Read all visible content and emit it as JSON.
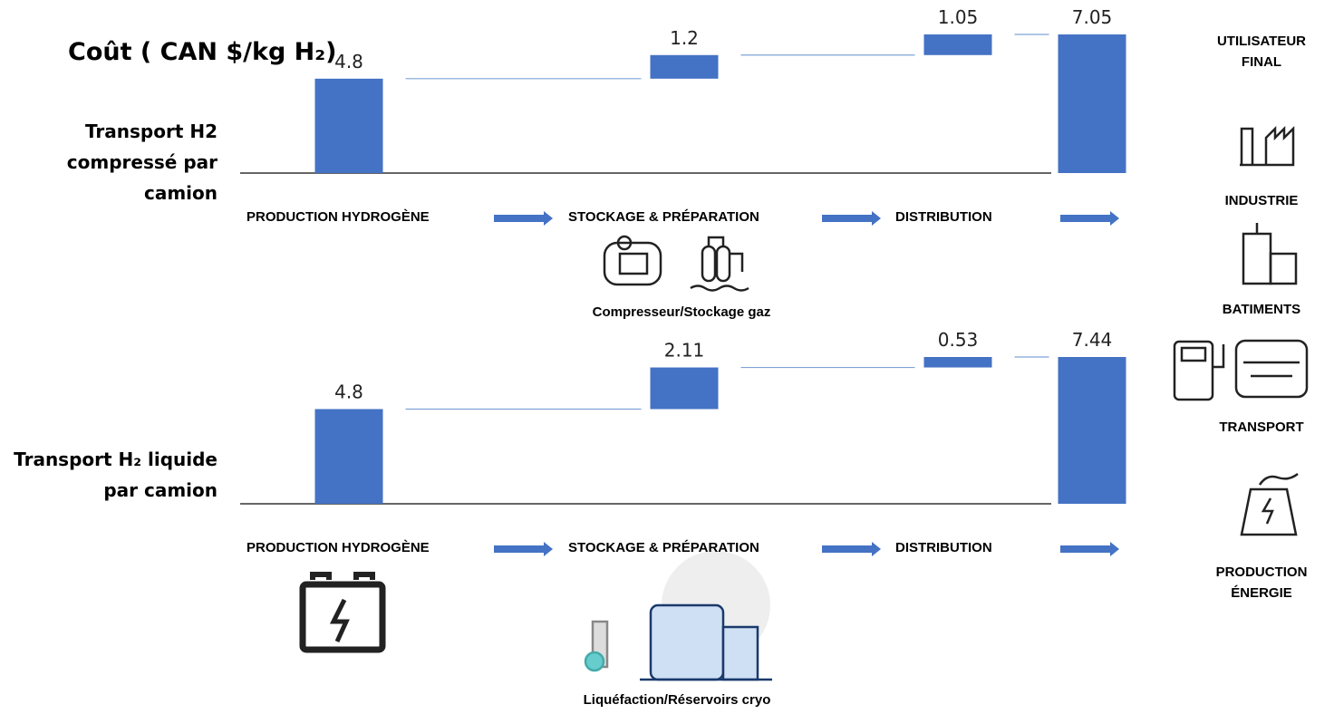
{
  "title": "Coût ( CAN $/kg H₂)",
  "chart_data": [
    {
      "type": "waterfall",
      "title": "Transport H2 compressé par camion",
      "categories": [
        "PRODUCTION HYDROGÈNE",
        "STOCKAGE & PRÉPARATION",
        "DISTRIBUTION",
        null
      ],
      "values": [
        4.8,
        1.2,
        1.05,
        7.05
      ],
      "measure": [
        "relative",
        "relative",
        "relative",
        "total"
      ],
      "color": "#4472c4",
      "note": "Compresseur/Stockage gaz"
    },
    {
      "type": "waterfall",
      "title": "Transport H₂ liquide par camion",
      "categories": [
        "PRODUCTION HYDROGÈNE",
        "STOCKAGE & PRÉPARATION",
        "DISTRIBUTION",
        null
      ],
      "values": [
        4.8,
        2.11,
        0.53,
        7.44
      ],
      "measure": [
        "relative",
        "relative",
        "relative",
        "total"
      ],
      "color": "#4472c4",
      "note": "Liquéfaction/Réservoirs cryo"
    }
  ],
  "end_users": {
    "header": "UTILISATEUR FINAL",
    "items": [
      "INDUSTRIE",
      "BATIMENTS",
      "TRANSPORT",
      "PRODUCTION ÉNERGIE"
    ]
  }
}
